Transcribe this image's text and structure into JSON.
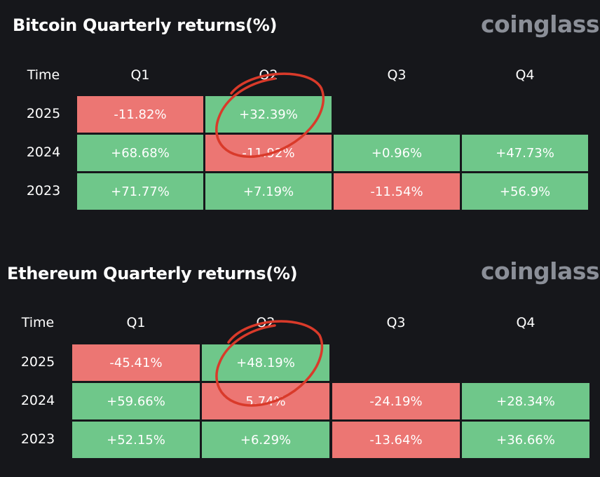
{
  "colors": {
    "background": "#16171b",
    "positive": "#6fc78a",
    "negative": "#ec7673",
    "brand": "#8b8f98",
    "annotation": "#d93a2a"
  },
  "chart_data": [
    {
      "type": "table",
      "title": "Bitcoin Quarterly returns(%)",
      "brand": "coinglass",
      "corner": "Time",
      "columns": [
        "Q1",
        "Q2",
        "Q3",
        "Q4"
      ],
      "rows": [
        {
          "label": "2025",
          "values": [
            "-11.82%",
            "+32.39%",
            "",
            ""
          ]
        },
        {
          "label": "2024",
          "values": [
            "+68.68%",
            "-11.92%",
            "+0.96%",
            "+47.73%"
          ]
        },
        {
          "label": "2023",
          "values": [
            "+71.77%",
            "+7.19%",
            "-11.54%",
            "+56.9%"
          ]
        }
      ],
      "annotation": "red hand-drawn circle around Q2 2025"
    },
    {
      "type": "table",
      "title": "Ethereum Quarterly returns(%)",
      "brand": "coinglass",
      "corner": "Time",
      "columns": [
        "Q1",
        "Q2",
        "Q3",
        "Q4"
      ],
      "rows": [
        {
          "label": "2025",
          "values": [
            "-45.41%",
            "+48.19%",
            "",
            ""
          ]
        },
        {
          "label": "2024",
          "values": [
            "+59.66%",
            "5.74%",
            "-24.19%",
            "+28.34%"
          ]
        },
        {
          "label": "2023",
          "values": [
            "+52.15%",
            "+6.29%",
            "-13.64%",
            "+36.66%"
          ]
        }
      ],
      "annotation": "red hand-drawn circle around Q2 2025"
    }
  ]
}
